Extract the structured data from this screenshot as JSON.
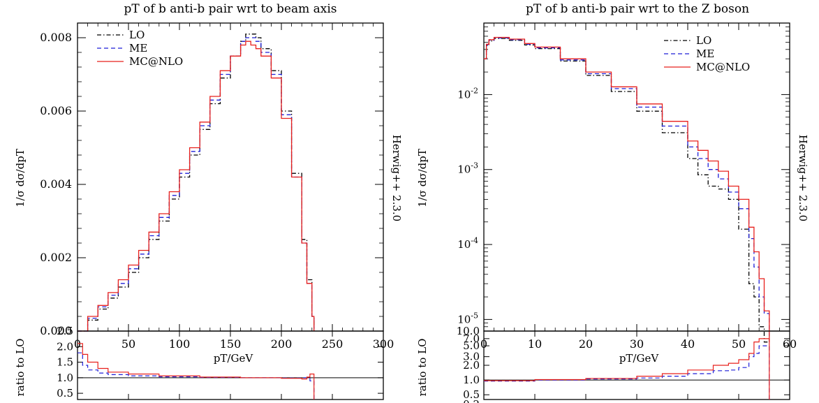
{
  "chart_data": [
    {
      "type": "line",
      "title": "pT of b anti-b pair wrt to beam axis",
      "xlabel": "pT/GeV",
      "ylabel": "1/σ dσ/dpT",
      "ratio_label": "ratio to LO",
      "side_label": "Herwig++ 2.3.0",
      "xlim": [
        0,
        300
      ],
      "ylim": [
        0,
        0.0084
      ],
      "y_scale": "linear",
      "x_ticks": [
        "0",
        "50",
        "100",
        "150",
        "200",
        "250",
        "300"
      ],
      "y_ticks": [
        "0.000",
        "0.002",
        "0.004",
        "0.006",
        "0.008"
      ],
      "ratio_ylim": [
        0.3,
        2.5
      ],
      "ratio_ticks": [
        "0.5",
        "1.0",
        "1.5",
        "2.0",
        "2.5"
      ],
      "legend_position": "top-left",
      "x": [
        0,
        10,
        20,
        30,
        40,
        50,
        60,
        70,
        80,
        90,
        100,
        110,
        120,
        130,
        140,
        150,
        160,
        165,
        170,
        175,
        180,
        190,
        200,
        210,
        220,
        225,
        230,
        232
      ],
      "series": [
        {
          "name": "LO",
          "color": "#000000",
          "dash": "6 3 1.5 3",
          "values": [
            0,
            0.0003,
            0.0006,
            0.0009,
            0.0012,
            0.0016,
            0.002,
            0.0025,
            0.003,
            0.0036,
            0.0042,
            0.0048,
            0.0055,
            0.0062,
            0.0069,
            0.0075,
            0.0079,
            0.0081,
            0.0081,
            0.008,
            0.0077,
            0.0071,
            0.006,
            0.0043,
            0.0025,
            0.0014,
            0.0004,
            0
          ]
        },
        {
          "name": "ME",
          "color": "#1f1fd8",
          "dash": "6 4",
          "values": [
            0,
            0.00035,
            0.00066,
            0.00098,
            0.0013,
            0.0017,
            0.0021,
            0.0026,
            0.0031,
            0.0037,
            0.0043,
            0.0049,
            0.0056,
            0.0063,
            0.007,
            0.0075,
            0.0079,
            0.008,
            0.008,
            0.0079,
            0.0076,
            0.007,
            0.0059,
            0.0042,
            0.0024,
            0.0013,
            0.0004,
            0
          ]
        },
        {
          "name": "MC@NLO",
          "color": "#e8201c",
          "dash": "",
          "values": [
            0,
            0.0004,
            0.0007,
            0.00105,
            0.0014,
            0.0018,
            0.0022,
            0.0027,
            0.0032,
            0.0038,
            0.0044,
            0.005,
            0.0057,
            0.0064,
            0.0071,
            0.0075,
            0.0078,
            0.0079,
            0.0078,
            0.0077,
            0.0075,
            0.0069,
            0.0058,
            0.0042,
            0.0024,
            0.0013,
            0.0004,
            0
          ]
        }
      ],
      "ratio_x": [
        0,
        5,
        10,
        20,
        30,
        50,
        80,
        120,
        160,
        200,
        220,
        225,
        228,
        232
      ],
      "ratio_series": [
        {
          "name": "ME",
          "values": [
            1.8,
            1.4,
            1.25,
            1.15,
            1.1,
            1.06,
            1.03,
            1.01,
            1.0,
            0.99,
            1.0,
            0.98,
            0.9,
            0.3
          ]
        },
        {
          "name": "MC@NLO",
          "values": [
            2.1,
            1.75,
            1.5,
            1.3,
            1.18,
            1.12,
            1.06,
            1.02,
            1.0,
            0.98,
            0.96,
            1.02,
            1.12,
            0.3
          ]
        }
      ]
    },
    {
      "type": "line",
      "title": "pT of b anti-b pair wrt to the Z boson",
      "xlabel": "pT/GeV",
      "ylabel": "1/σ dσ/dpT",
      "ratio_label": "ratio to LO",
      "side_label": "Herwig++ 2.3.0",
      "xlim": [
        0,
        60
      ],
      "ylim": [
        7e-06,
        0.09
      ],
      "y_scale": "log",
      "x_ticks": [
        "0",
        "10",
        "20",
        "30",
        "40",
        "50",
        "60"
      ],
      "y_ticks": [
        "10^-2",
        "10^-3",
        "10^-4",
        "10^-5"
      ],
      "ratio_ylim": [
        0.4,
        10
      ],
      "ratio_ticks": [
        "0.5",
        "0.2",
        "1.0",
        "2.0",
        "3.0",
        "5.0",
        "7.0",
        "10.0"
      ],
      "legend_position": "top-right",
      "x": [
        0,
        0.5,
        1,
        2,
        3,
        5,
        8,
        10,
        15,
        20,
        25,
        30,
        35,
        40,
        42,
        44,
        46,
        48,
        50,
        52,
        53,
        54,
        55,
        56
      ],
      "series": [
        {
          "name": "LO",
          "color": "#000000",
          "dash": "6 3 1.5 3",
          "values": [
            0.03,
            0.045,
            0.052,
            0.056,
            0.056,
            0.053,
            0.046,
            0.041,
            0.028,
            0.018,
            0.011,
            0.006,
            0.0031,
            0.0014,
            0.00085,
            0.0006,
            0.00055,
            0.0004,
            0.00016,
            3e-05,
            2e-05,
            8e-06,
            5e-06,
            5e-06
          ]
        },
        {
          "name": "ME",
          "color": "#1f1fd8",
          "dash": "6 4",
          "values": [
            0.03,
            0.046,
            0.053,
            0.057,
            0.057,
            0.054,
            0.047,
            0.042,
            0.029,
            0.019,
            0.012,
            0.0068,
            0.0038,
            0.002,
            0.0014,
            0.001,
            0.00075,
            0.0005,
            0.0003,
            0.00012,
            5e-05,
            2e-05,
            1.2e-05,
            5e-06
          ]
        },
        {
          "name": "MC@NLO",
          "color": "#e8201c",
          "dash": "",
          "values": [
            0.03,
            0.047,
            0.054,
            0.058,
            0.058,
            0.055,
            0.048,
            0.043,
            0.03,
            0.02,
            0.0127,
            0.0075,
            0.0044,
            0.0024,
            0.0018,
            0.0013,
            0.00095,
            0.0006,
            0.0004,
            0.00017,
            8e-05,
            3.5e-05,
            1.3e-05,
            5e-06
          ]
        }
      ],
      "ratio_x": [
        0,
        10,
        20,
        30,
        35,
        40,
        45,
        48,
        50,
        52,
        53,
        54,
        56
      ],
      "ratio_series": [
        {
          "name": "ME",
          "values": [
            0.95,
            1.0,
            1.05,
            1.1,
            1.2,
            1.35,
            1.55,
            1.6,
            1.8,
            3.0,
            3.5,
            5.0,
            0.35
          ]
        },
        {
          "name": "MC@NLO",
          "values": [
            0.97,
            1.02,
            1.08,
            1.2,
            1.35,
            1.6,
            2.0,
            2.2,
            2.6,
            3.5,
            6.0,
            7.0,
            0.35
          ]
        }
      ]
    }
  ]
}
